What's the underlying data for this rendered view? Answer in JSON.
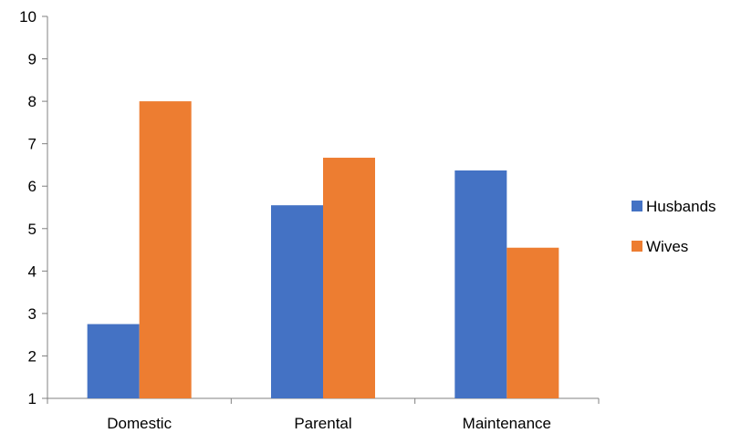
{
  "chart_data": {
    "type": "bar",
    "categories": [
      "Domestic",
      "Parental",
      "Maintenance"
    ],
    "series": [
      {
        "name": "Husbands",
        "values": [
          2.75,
          5.55,
          6.37
        ],
        "color": "#4472C4"
      },
      {
        "name": "Wives",
        "values": [
          8.0,
          6.67,
          4.55
        ],
        "color": "#ED7D31"
      }
    ],
    "ylim": [
      1,
      10
    ],
    "yticks": [
      1,
      2,
      3,
      4,
      5,
      6,
      7,
      8,
      9,
      10
    ],
    "grid": false,
    "legend_position": "right"
  }
}
